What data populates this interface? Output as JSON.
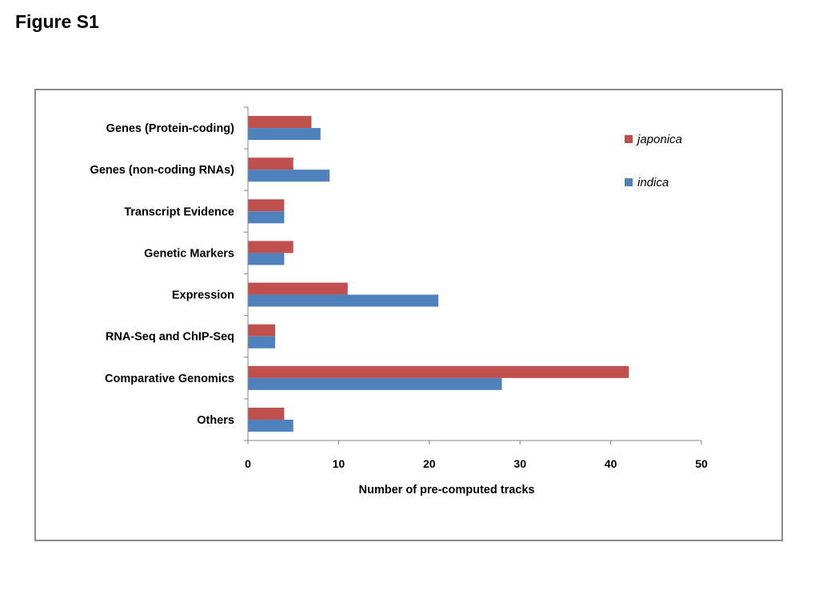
{
  "figure_label": "Figure S1",
  "chart_data": {
    "type": "bar",
    "orientation": "horizontal",
    "categories": [
      "Genes (Protein-coding)",
      "Genes (non-coding RNAs)",
      "Transcript Evidence",
      "Genetic Markers",
      "Expression",
      "RNA-Seq and ChIP-Seq",
      "Comparative Genomics",
      "Others"
    ],
    "series": [
      {
        "name": "japonica",
        "color": "#c0504d",
        "values": [
          7,
          5,
          4,
          5,
          11,
          3,
          42,
          4
        ]
      },
      {
        "name": "indica",
        "color": "#4f81bd",
        "values": [
          8,
          9,
          4,
          4,
          21,
          3,
          28,
          5
        ]
      }
    ],
    "xlabel": "Number of pre-computed tracks",
    "ylabel": "",
    "title": "",
    "xlim": [
      0,
      50
    ],
    "xticks": [
      0,
      10,
      20,
      30,
      40,
      50
    ],
    "grid": false,
    "legend_position": "top-right"
  }
}
